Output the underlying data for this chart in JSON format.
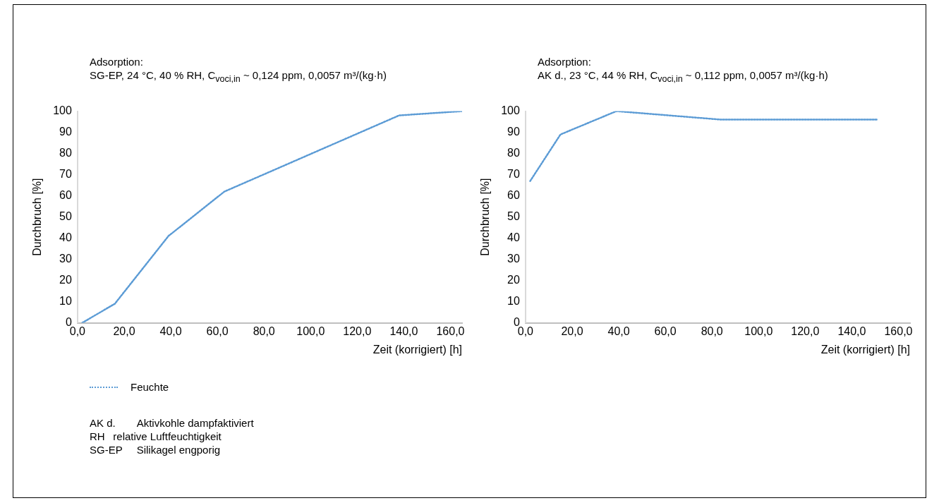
{
  "chart_data": [
    {
      "type": "line",
      "title": "Adsorption:",
      "subtitle": "SG-EP, 24 °C, 40 % RH, C$_{voci,in}$ ~ 0,124 ppm, 0,0057 m³/(kg·h)",
      "xlabel": "Zeit (korrigiert) [h]",
      "ylabel": "Durchbruch [%]",
      "series": [
        {
          "name": "Feuchte",
          "color": "#5b9bd5",
          "x": [
            2,
            16,
            39,
            63,
            138,
            165
          ],
          "values": [
            0,
            9,
            41,
            62,
            98,
            100
          ]
        }
      ],
      "xlim": [
        0,
        165
      ],
      "xticks": [
        {
          "value": 0,
          "label": "0,0"
        },
        {
          "value": 20,
          "label": "20,0"
        },
        {
          "value": 40,
          "label": "40,0"
        },
        {
          "value": 60,
          "label": "60,0"
        },
        {
          "value": 80,
          "label": "80,0"
        },
        {
          "value": 100,
          "label": "100,0"
        },
        {
          "value": 120,
          "label": "120,0"
        },
        {
          "value": 140,
          "label": "140,0"
        },
        {
          "value": 160,
          "label": "160,0"
        }
      ],
      "ylim": [
        0,
        100
      ],
      "yticks": [
        0,
        10,
        20,
        30,
        40,
        50,
        60,
        70,
        80,
        90,
        100
      ],
      "grid": false,
      "legend": "bottom",
      "marker": "none",
      "line_style": "dotted",
      "annotations": [
        "AK d.\tAktivkohle dampfaktiviert",
        "RH\trelative Luftfeuchtigkeit",
        "SG-EP\tSilikagel engporig"
      ]
    },
    {
      "type": "line",
      "title": "Adsorption:",
      "subtitle": "AK d., 23 °C, 44 % RH, C$_{voci,in}$ ~ 0,112 ppm, 0,0057 m³/(kg·h)",
      "xlabel": "Zeit (korrigiert) [h]",
      "ylabel": "Durchbruch [%]",
      "series": [
        {
          "color": "#5b9bd5",
          "x": [
            2,
            15,
            39,
            84,
            151
          ],
          "values": [
            67,
            89,
            100,
            96,
            96
          ]
        }
      ],
      "xlim": [
        0,
        165
      ],
      "xticks": [
        {
          "value": 0,
          "label": "0,0"
        },
        {
          "value": 20,
          "label": "20,0"
        },
        {
          "value": 40,
          "label": "40,0"
        },
        {
          "value": 60,
          "label": "60,0"
        },
        {
          "value": 80,
          "label": "80,0"
        },
        {
          "value": 100,
          "label": "100,0"
        },
        {
          "value": 120,
          "label": "120,0"
        },
        {
          "value": 140,
          "label": "140,0"
        },
        {
          "value": 160,
          "label": "160,0"
        }
      ],
      "ylim": [
        0,
        100
      ],
      "yticks": [
        0,
        10,
        20,
        30,
        40,
        50,
        60,
        70,
        80,
        90,
        100
      ],
      "grid": false,
      "marker": "none",
      "line_style": "dotted"
    }
  ]
}
